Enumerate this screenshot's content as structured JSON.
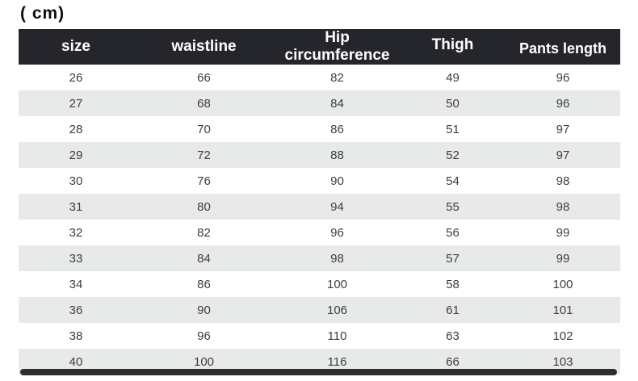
{
  "unit_label": "( cm)",
  "table": {
    "columns": [
      "size",
      "waistline",
      "Hip circumference",
      "Thigh",
      "Pants length"
    ],
    "column_keys": [
      "size",
      "waistline",
      "hip-circumference",
      "thigh",
      "pants-length"
    ],
    "rows": [
      [
        "26",
        "66",
        "82",
        "49",
        "96"
      ],
      [
        "27",
        "68",
        "84",
        "50",
        "96"
      ],
      [
        "28",
        "70",
        "86",
        "51",
        "97"
      ],
      [
        "29",
        "72",
        "88",
        "52",
        "97"
      ],
      [
        "30",
        "76",
        "90",
        "54",
        "98"
      ],
      [
        "31",
        "80",
        "94",
        "55",
        "98"
      ],
      [
        "32",
        "82",
        "96",
        "56",
        "99"
      ],
      [
        "33",
        "84",
        "98",
        "57",
        "99"
      ],
      [
        "34",
        "86",
        "100",
        "58",
        "100"
      ],
      [
        "36",
        "90",
        "106",
        "61",
        "101"
      ],
      [
        "38",
        "96",
        "110",
        "63",
        "102"
      ],
      [
        "40",
        "100",
        "116",
        "66",
        "103"
      ]
    ]
  },
  "colors": {
    "header_bg": "#24262b",
    "header_text": "#ffffff",
    "row_bg": "#ffffff",
    "row_alt_bg": "#e8e9e9",
    "body_text": "#3d3e40",
    "footer_bar": "#2c2e31"
  }
}
